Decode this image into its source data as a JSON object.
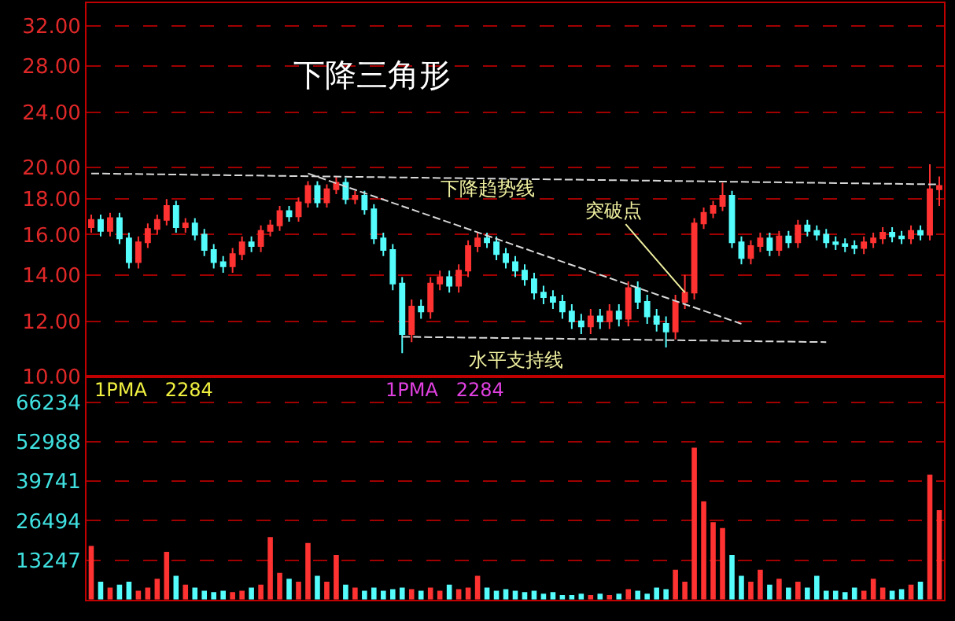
{
  "chart_data": [
    {
      "type": "candlestick",
      "title": "下降三角形",
      "categories": [
        null,
        null,
        null,
        null,
        null,
        null,
        null,
        null,
        null,
        null,
        null,
        null,
        null,
        null,
        null,
        null,
        null,
        null,
        null,
        null,
        null,
        null,
        null,
        null,
        null,
        null,
        null,
        null,
        null,
        null,
        null,
        null,
        null,
        null,
        null,
        null,
        null,
        null,
        null,
        null,
        null,
        null,
        null,
        null,
        null,
        null,
        null,
        null,
        null,
        null,
        null,
        null,
        null,
        null,
        null,
        null,
        null,
        null,
        null,
        null,
        null,
        null,
        null,
        null,
        null,
        null,
        null,
        null,
        null,
        null,
        null,
        null,
        null,
        null,
        null,
        null,
        null,
        null,
        null,
        null,
        null,
        null,
        null,
        null,
        null,
        null,
        null,
        null,
        null,
        null,
        null
      ],
      "ohlc": [
        [
          16.4,
          17.1,
          16.1,
          16.8
        ],
        [
          16.8,
          17.1,
          15.9,
          16.2
        ],
        [
          16.2,
          17.2,
          15.9,
          16.9
        ],
        [
          16.9,
          17.2,
          15.5,
          15.8
        ],
        [
          15.8,
          16.1,
          14.3,
          14.6
        ],
        [
          14.6,
          15.9,
          14.3,
          15.6
        ],
        [
          15.6,
          16.6,
          15.3,
          16.3
        ],
        [
          16.3,
          17.1,
          16.0,
          16.8
        ],
        [
          16.8,
          18.0,
          16.5,
          17.6
        ],
        [
          17.6,
          17.9,
          16.1,
          16.4
        ],
        [
          16.4,
          16.9,
          16.1,
          16.6
        ],
        [
          16.6,
          16.9,
          15.7,
          16.0
        ],
        [
          16.0,
          16.3,
          14.9,
          15.2
        ],
        [
          15.2,
          15.5,
          14.3,
          14.6
        ],
        [
          14.6,
          14.9,
          14.1,
          14.4
        ],
        [
          14.4,
          15.3,
          14.1,
          15.0
        ],
        [
          15.0,
          15.9,
          14.7,
          15.6
        ],
        [
          15.6,
          15.9,
          15.1,
          15.4
        ],
        [
          15.4,
          16.5,
          15.1,
          16.2
        ],
        [
          16.2,
          16.8,
          15.9,
          16.5
        ],
        [
          16.5,
          17.6,
          16.2,
          17.3
        ],
        [
          17.3,
          17.6,
          16.7,
          17.0
        ],
        [
          17.0,
          18.1,
          16.7,
          17.8
        ],
        [
          17.8,
          19.1,
          17.5,
          18.8
        ],
        [
          18.8,
          19.1,
          17.5,
          17.8
        ],
        [
          17.8,
          18.9,
          17.5,
          18.6
        ],
        [
          18.6,
          19.4,
          18.3,
          19.0
        ],
        [
          19.0,
          19.3,
          17.7,
          18.0
        ],
        [
          18.0,
          18.5,
          17.7,
          18.2
        ],
        [
          18.2,
          18.5,
          17.1,
          17.4
        ],
        [
          17.4,
          17.7,
          15.5,
          15.8
        ],
        [
          15.8,
          16.1,
          14.9,
          15.2
        ],
        [
          15.2,
          15.5,
          13.3,
          13.6
        ],
        [
          13.6,
          13.9,
          10.8,
          11.5
        ],
        [
          11.5,
          12.9,
          11.2,
          12.6
        ],
        [
          12.6,
          12.9,
          12.1,
          12.4
        ],
        [
          12.4,
          13.9,
          12.1,
          13.6
        ],
        [
          13.6,
          14.2,
          13.3,
          13.9
        ],
        [
          13.9,
          14.2,
          13.2,
          13.5
        ],
        [
          13.5,
          14.5,
          13.2,
          14.2
        ],
        [
          14.2,
          15.7,
          13.9,
          15.4
        ],
        [
          15.4,
          16.1,
          15.1,
          15.8
        ],
        [
          15.8,
          16.1,
          15.3,
          15.6
        ],
        [
          15.6,
          15.9,
          14.7,
          15.0
        ],
        [
          15.0,
          15.3,
          14.3,
          14.6
        ],
        [
          14.6,
          14.9,
          13.9,
          14.2
        ],
        [
          14.2,
          14.5,
          13.5,
          13.8
        ],
        [
          13.8,
          14.1,
          12.9,
          13.2
        ],
        [
          13.2,
          13.5,
          12.7,
          13.0
        ],
        [
          13.0,
          13.3,
          12.5,
          12.8
        ],
        [
          12.8,
          13.1,
          12.1,
          12.4
        ],
        [
          12.4,
          12.7,
          11.7,
          12.0
        ],
        [
          12.0,
          12.3,
          11.5,
          11.8
        ],
        [
          11.8,
          12.5,
          11.5,
          12.2
        ],
        [
          12.2,
          12.5,
          11.7,
          12.0
        ],
        [
          12.0,
          12.7,
          11.7,
          12.4
        ],
        [
          12.4,
          12.7,
          11.8,
          12.1
        ],
        [
          12.1,
          13.7,
          11.8,
          13.4
        ],
        [
          13.4,
          13.7,
          12.5,
          12.8
        ],
        [
          12.8,
          13.1,
          11.9,
          12.2
        ],
        [
          12.2,
          12.5,
          11.6,
          11.9
        ],
        [
          11.9,
          12.2,
          11.0,
          11.6
        ],
        [
          11.6,
          13.1,
          11.3,
          12.8
        ],
        [
          12.8,
          14.0,
          12.5,
          13.2
        ],
        [
          13.2,
          16.9,
          12.9,
          16.6
        ],
        [
          16.6,
          17.5,
          16.3,
          17.2
        ],
        [
          17.2,
          17.9,
          16.9,
          17.6
        ],
        [
          17.6,
          19.0,
          17.3,
          18.2
        ],
        [
          18.2,
          18.5,
          15.3,
          15.6
        ],
        [
          15.6,
          15.9,
          14.5,
          14.8
        ],
        [
          14.8,
          15.7,
          14.5,
          15.4
        ],
        [
          15.4,
          16.1,
          15.1,
          15.8
        ],
        [
          15.8,
          16.1,
          14.9,
          15.2
        ],
        [
          15.2,
          16.2,
          14.9,
          15.9
        ],
        [
          15.9,
          16.2,
          15.3,
          15.6
        ],
        [
          15.6,
          16.8,
          15.3,
          16.5
        ],
        [
          16.5,
          16.8,
          15.9,
          16.2
        ],
        [
          16.2,
          16.5,
          15.7,
          16.0
        ],
        [
          16.0,
          16.3,
          15.3,
          15.6
        ],
        [
          15.6,
          15.9,
          15.2,
          15.5
        ],
        [
          15.5,
          15.8,
          15.1,
          15.4
        ],
        [
          15.4,
          15.7,
          15.0,
          15.3
        ],
        [
          15.3,
          15.9,
          15.0,
          15.6
        ],
        [
          15.6,
          16.1,
          15.3,
          15.8
        ],
        [
          15.8,
          16.4,
          15.5,
          16.1
        ],
        [
          16.1,
          16.4,
          15.6,
          15.9
        ],
        [
          15.9,
          16.2,
          15.5,
          15.8
        ],
        [
          15.8,
          16.5,
          15.5,
          16.2
        ],
        [
          16.2,
          16.5,
          15.7,
          16.0
        ],
        [
          16.0,
          20.2,
          15.7,
          18.6
        ],
        [
          18.6,
          19.4,
          17.6,
          18.8
        ]
      ],
      "colors": [
        "#ff3232",
        "#54fcfc",
        "#ff3232",
        "#54fcfc",
        "#54fcfc",
        "#ff3232",
        "#ff3232",
        "#ff3232",
        "#ff3232",
        "#54fcfc",
        "#ff3232",
        "#54fcfc",
        "#54fcfc",
        "#54fcfc",
        "#54fcfc",
        "#ff3232",
        "#ff3232",
        "#54fcfc",
        "#ff3232",
        "#ff3232",
        "#ff3232",
        "#54fcfc",
        "#ff3232",
        "#ff3232",
        "#54fcfc",
        "#ff3232",
        "#ff3232",
        "#54fcfc",
        "#ff3232",
        "#54fcfc",
        "#54fcfc",
        "#54fcfc",
        "#54fcfc",
        "#54fcfc",
        "#ff3232",
        "#54fcfc",
        "#ff3232",
        "#ff3232",
        "#54fcfc",
        "#ff3232",
        "#ff3232",
        "#ff3232",
        "#54fcfc",
        "#54fcfc",
        "#54fcfc",
        "#54fcfc",
        "#54fcfc",
        "#54fcfc",
        "#54fcfc",
        "#54fcfc",
        "#54fcfc",
        "#54fcfc",
        "#54fcfc",
        "#ff3232",
        "#54fcfc",
        "#ff3232",
        "#54fcfc",
        "#ff3232",
        "#54fcfc",
        "#54fcfc",
        "#54fcfc",
        "#54fcfc",
        "#ff3232",
        "#ff3232",
        "#ff3232",
        "#ff3232",
        "#ff3232",
        "#ff3232",
        "#54fcfc",
        "#54fcfc",
        "#ff3232",
        "#ff3232",
        "#54fcfc",
        "#ff3232",
        "#54fcfc",
        "#ff3232",
        "#54fcfc",
        "#54fcfc",
        "#54fcfc",
        "#54fcfc",
        "#54fcfc",
        "#54fcfc",
        "#ff3232",
        "#ff3232",
        "#ff3232",
        "#54fcfc",
        "#54fcfc",
        "#ff3232",
        "#54fcfc",
        "#ff3232",
        "#ff3232"
      ],
      "series": [
        {
          "type": "line",
          "values": [
            19.6,
            null,
            null,
            null,
            null,
            null,
            null,
            null,
            null,
            null,
            null,
            null,
            null,
            null,
            null,
            null,
            null,
            null,
            null,
            null,
            null,
            null,
            null,
            null,
            null,
            null,
            null,
            null,
            null,
            null,
            null,
            null,
            null,
            null,
            null,
            null,
            null,
            null,
            null,
            null,
            null,
            null,
            null,
            null,
            null,
            null,
            null,
            null,
            null,
            null,
            null,
            null,
            null,
            null,
            null,
            null,
            null,
            null,
            null,
            null,
            null,
            null,
            null,
            null,
            null,
            null,
            null,
            null,
            null,
            null,
            null,
            null,
            null,
            null,
            null,
            null,
            null,
            null,
            null,
            null,
            null,
            null,
            null,
            null,
            null,
            null,
            null,
            null,
            null,
            null,
            18.9
          ],
          "color": "#d8d8d8",
          "line_style": "dashed"
        },
        {
          "type": "line",
          "name": "下降趋势线",
          "values": [
            null,
            null,
            null,
            null,
            null,
            null,
            null,
            null,
            null,
            null,
            null,
            null,
            null,
            null,
            null,
            null,
            null,
            null,
            null,
            null,
            null,
            null,
            null,
            19.6,
            null,
            null,
            null,
            null,
            null,
            null,
            null,
            null,
            null,
            null,
            null,
            null,
            null,
            null,
            null,
            null,
            null,
            null,
            null,
            null,
            null,
            null,
            null,
            null,
            null,
            null,
            null,
            null,
            null,
            null,
            null,
            null,
            null,
            null,
            null,
            null,
            null,
            null,
            null,
            null,
            null,
            null,
            null,
            null,
            null,
            11.9,
            null,
            null,
            null,
            null,
            null,
            null,
            null,
            null,
            null,
            null,
            null,
            null,
            null,
            null,
            null,
            null,
            null,
            null,
            null,
            null,
            null
          ],
          "color": "#d8d8d8",
          "line_style": "dashed"
        },
        {
          "type": "line",
          "name": "水平支持线",
          "values": [
            null,
            null,
            null,
            null,
            null,
            null,
            null,
            null,
            null,
            null,
            null,
            null,
            null,
            null,
            null,
            null,
            null,
            null,
            null,
            null,
            null,
            null,
            null,
            null,
            null,
            null,
            null,
            null,
            null,
            null,
            null,
            null,
            null,
            11.4,
            null,
            null,
            null,
            null,
            null,
            null,
            null,
            null,
            null,
            null,
            null,
            null,
            null,
            null,
            null,
            null,
            null,
            null,
            null,
            null,
            null,
            null,
            null,
            null,
            null,
            null,
            null,
            null,
            null,
            null,
            null,
            null,
            null,
            null,
            null,
            null,
            null,
            null,
            null,
            null,
            null,
            null,
            null,
            null,
            11.2,
            null,
            null,
            null,
            null,
            null,
            null,
            null,
            null,
            null,
            null,
            null,
            null
          ],
          "color": "#d8d8d8",
          "line_style": "dashed"
        }
      ],
      "annotations": [
        "突破点"
      ],
      "log": true,
      "ylim": [
        10,
        34.5
      ],
      "yticks": [
        {
          "value": 10,
          "label": "10.00"
        },
        {
          "value": 12,
          "label": "12.00"
        },
        {
          "value": 14,
          "label": "14.00"
        },
        {
          "value": 16,
          "label": "16.00"
        },
        {
          "value": 18,
          "label": "18.00"
        },
        {
          "value": 20,
          "label": "20.00"
        },
        {
          "value": 24,
          "label": "24.00"
        },
        {
          "value": 28,
          "label": "28.00"
        },
        {
          "value": 32,
          "label": "32.00"
        }
      ],
      "grid": "y",
      "tick_labels": "y"
    },
    {
      "type": "bar",
      "categories": [
        null,
        null,
        null,
        null,
        null,
        null,
        null,
        null,
        null,
        null,
        null,
        null,
        null,
        null,
        null,
        null,
        null,
        null,
        null,
        null,
        null,
        null,
        null,
        null,
        null,
        null,
        null,
        null,
        null,
        null,
        null,
        null,
        null,
        null,
        null,
        null,
        null,
        null,
        null,
        null,
        null,
        null,
        null,
        null,
        null,
        null,
        null,
        null,
        null,
        null,
        null,
        null,
        null,
        null,
        null,
        null,
        null,
        null,
        null,
        null,
        null,
        null,
        null,
        null,
        null,
        null,
        null,
        null,
        null,
        null,
        null,
        null,
        null,
        null,
        null,
        null,
        null,
        null,
        null,
        null,
        null,
        null,
        null,
        null,
        null,
        null,
        null,
        null,
        null,
        null,
        null
      ],
      "values": [
        18000,
        6000,
        4000,
        5000,
        6000,
        3000,
        4000,
        7000,
        16000,
        8000,
        5000,
        4000,
        3000,
        2500,
        3000,
        2500,
        3000,
        4000,
        5000,
        21000,
        9000,
        7000,
        6000,
        19000,
        8000,
        6000,
        15000,
        5000,
        4000,
        3000,
        4000,
        3000,
        3500,
        4000,
        3500,
        3000,
        4000,
        3000,
        5000,
        3500,
        4000,
        8000,
        4000,
        3000,
        3500,
        3000,
        2500,
        3000,
        2000,
        2500,
        1500,
        1500,
        2000,
        1500,
        2000,
        1500,
        2000,
        3500,
        3000,
        2000,
        4000,
        3500,
        10000,
        6000,
        51000,
        33000,
        26000,
        24000,
        15000,
        8000,
        6000,
        10000,
        5000,
        7000,
        4000,
        6000,
        4000,
        8000,
        3000,
        3000,
        2500,
        4000,
        3000,
        7000,
        4000,
        3000,
        3500,
        5000,
        6000,
        42000,
        30000
      ],
      "colors": [
        "#ff3232",
        "#54fcfc",
        "#ff3232",
        "#54fcfc",
        "#54fcfc",
        "#ff3232",
        "#ff3232",
        "#ff3232",
        "#ff3232",
        "#54fcfc",
        "#ff3232",
        "#54fcfc",
        "#54fcfc",
        "#54fcfc",
        "#54fcfc",
        "#ff3232",
        "#ff3232",
        "#54fcfc",
        "#ff3232",
        "#ff3232",
        "#ff3232",
        "#54fcfc",
        "#ff3232",
        "#ff3232",
        "#54fcfc",
        "#ff3232",
        "#ff3232",
        "#54fcfc",
        "#ff3232",
        "#54fcfc",
        "#54fcfc",
        "#54fcfc",
        "#54fcfc",
        "#54fcfc",
        "#ff3232",
        "#54fcfc",
        "#ff3232",
        "#ff3232",
        "#54fcfc",
        "#ff3232",
        "#ff3232",
        "#ff3232",
        "#54fcfc",
        "#54fcfc",
        "#54fcfc",
        "#54fcfc",
        "#54fcfc",
        "#54fcfc",
        "#54fcfc",
        "#54fcfc",
        "#54fcfc",
        "#54fcfc",
        "#54fcfc",
        "#ff3232",
        "#54fcfc",
        "#ff3232",
        "#54fcfc",
        "#ff3232",
        "#54fcfc",
        "#54fcfc",
        "#54fcfc",
        "#54fcfc",
        "#ff3232",
        "#ff3232",
        "#ff3232",
        "#ff3232",
        "#ff3232",
        "#ff3232",
        "#54fcfc",
        "#54fcfc",
        "#ff3232",
        "#ff3232",
        "#54fcfc",
        "#ff3232",
        "#54fcfc",
        "#ff3232",
        "#54fcfc",
        "#54fcfc",
        "#54fcfc",
        "#54fcfc",
        "#54fcfc",
        "#54fcfc",
        "#ff3232",
        "#ff3232",
        "#ff3232",
        "#54fcfc",
        "#54fcfc",
        "#ff3232",
        "#54fcfc",
        "#ff3232",
        "#ff3232"
      ],
      "annotations": [
        "1PMA   2284",
        "1PMA   2284"
      ],
      "ylim": [
        0,
        75000
      ],
      "yticks": [
        13247,
        26494,
        39741,
        52988,
        66234
      ],
      "grid": "y",
      "tick_labels": "y"
    }
  ]
}
